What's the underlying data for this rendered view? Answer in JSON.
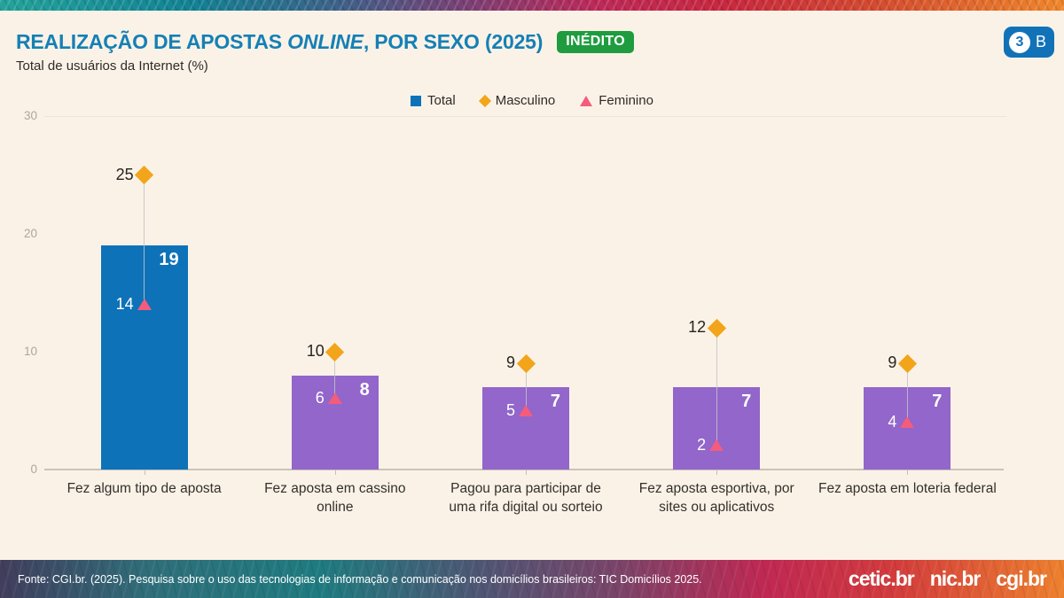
{
  "header": {
    "title_pre": "REALIZAÇÃO DE APOSTAS ",
    "title_italic": "ONLINE",
    "title_post": ", POR SEXO (2025)",
    "title_color": "#1580B5",
    "badge_new": "INÉDITO",
    "badge_new_color": "#1E9C3F",
    "subtitle": "Total de usuários da Internet (%)",
    "slide_badge": {
      "number": "3",
      "letter": "B",
      "color": "#1272B8"
    }
  },
  "chart_data": {
    "type": "bar",
    "title": "REALIZAÇÃO DE APOSTAS ONLINE, POR SEXO (2025)",
    "subtitle": "Total de usuários da Internet (%)",
    "unit": "%",
    "categories": [
      "Fez algum tipo de aposta",
      "Fez aposta em cassino online",
      "Pagou para participar de uma rifa digital ou sorteio",
      "Fez aposta esportiva, por sites ou aplicativos",
      "Fez aposta em loteria federal"
    ],
    "series": [
      {
        "name": "Total",
        "style": "bar",
        "values": [
          19,
          8,
          7,
          7,
          7
        ],
        "colors": [
          "#0E72B8",
          "#9266CB",
          "#9266CB",
          "#9266CB",
          "#9266CB"
        ],
        "value_label_color": "#FFFFFF"
      },
      {
        "name": "Masculino",
        "style": "point",
        "marker": "diamond",
        "color": "#F2A51B",
        "values": [
          25,
          10,
          9,
          12,
          9
        ],
        "label_color": "#26231F"
      },
      {
        "name": "Feminino",
        "style": "point",
        "marker": "triangle",
        "color": "#F45C7C",
        "values": [
          14,
          6,
          5,
          2,
          4
        ],
        "label_color": "#FFFFFF"
      }
    ],
    "ylim": [
      0,
      30
    ],
    "yticks": [
      0,
      10,
      20,
      30
    ],
    "legend_position": "top",
    "grid": "top-line-only"
  },
  "footer": {
    "source": "Fonte: CGI.br. (2025). Pesquisa sobre o uso das tecnologias de informação e comunicação nos domicílios brasileiros: TIC Domicílios 2025.",
    "logos": [
      "cetic.br",
      "nic.br",
      "cgi.br"
    ]
  }
}
